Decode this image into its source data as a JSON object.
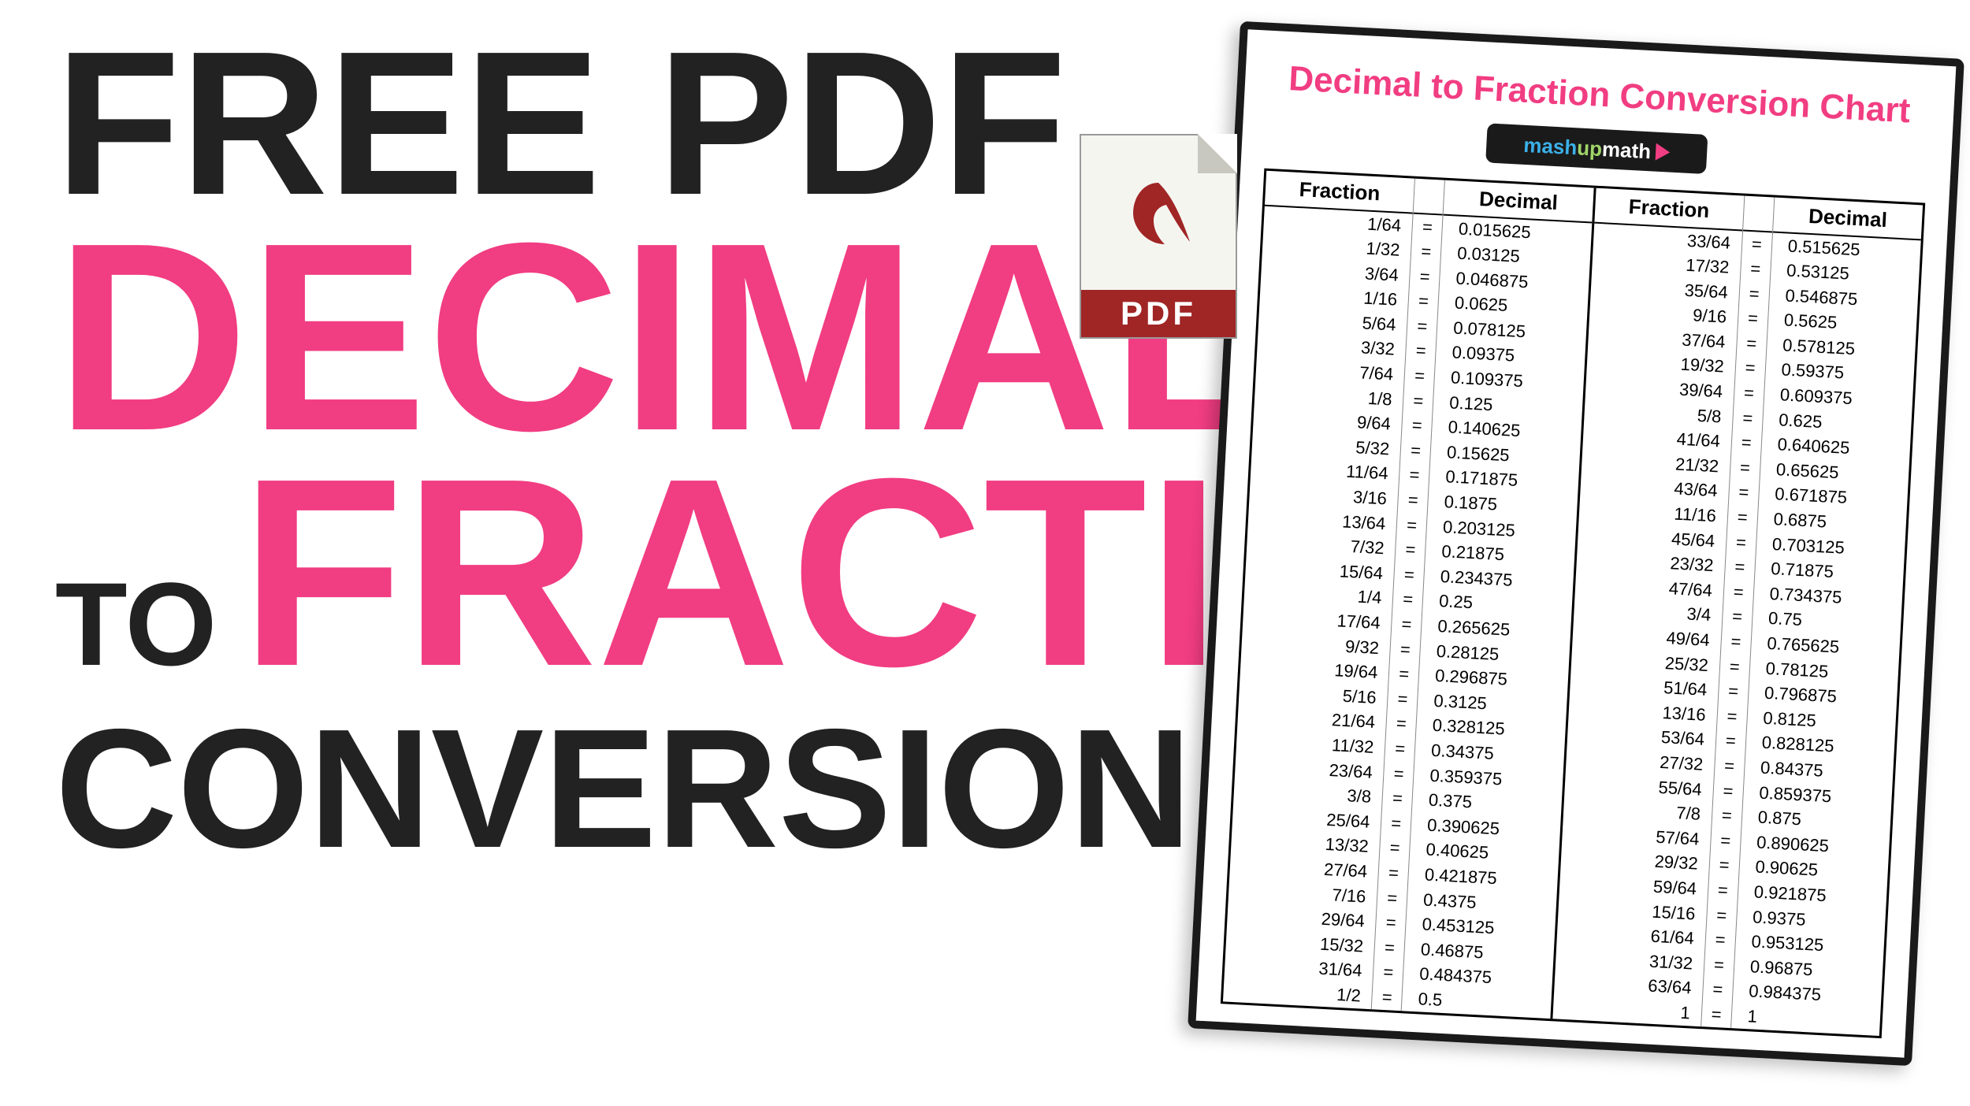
{
  "headline": {
    "line1": "FREE PDF",
    "line2": "DECIMAL",
    "line3_to": "TO",
    "line3_fraction": "FRACTION",
    "line4": "CONVERSION CHART!"
  },
  "colors": {
    "pink": "#f13d82",
    "black": "#222222",
    "pdf_red": "#a02525",
    "logo_bg": "#1a1a1a",
    "logo_blue": "#3bb0e8",
    "logo_green": "#a0d468",
    "background": "#ffffff"
  },
  "pdf_icon": {
    "label": "PDF"
  },
  "sheet": {
    "title": "Decimal to Fraction Conversion Chart",
    "logo": {
      "part1": "mash",
      "part2": "up",
      "part3": "math"
    },
    "headers": {
      "fraction": "Fraction",
      "decimal": "Decimal"
    },
    "table": {
      "type": "table",
      "columns": [
        "Fraction",
        "=",
        "Decimal",
        "Fraction",
        "=",
        "Decimal"
      ],
      "border_color": "#000000",
      "inner_border_color": "#888888",
      "header_fontsize": 26,
      "cell_fontsize": 22,
      "rows_left": [
        [
          "1/64",
          "0.015625"
        ],
        [
          "1/32",
          "0.03125"
        ],
        [
          "3/64",
          "0.046875"
        ],
        [
          "1/16",
          "0.0625"
        ],
        [
          "5/64",
          "0.078125"
        ],
        [
          "3/32",
          "0.09375"
        ],
        [
          "7/64",
          "0.109375"
        ],
        [
          "1/8",
          "0.125"
        ],
        [
          "9/64",
          "0.140625"
        ],
        [
          "5/32",
          "0.15625"
        ],
        [
          "11/64",
          "0.171875"
        ],
        [
          "3/16",
          "0.1875"
        ],
        [
          "13/64",
          "0.203125"
        ],
        [
          "7/32",
          "0.21875"
        ],
        [
          "15/64",
          "0.234375"
        ],
        [
          "1/4",
          "0.25"
        ],
        [
          "17/64",
          "0.265625"
        ],
        [
          "9/32",
          "0.28125"
        ],
        [
          "19/64",
          "0.296875"
        ],
        [
          "5/16",
          "0.3125"
        ],
        [
          "21/64",
          "0.328125"
        ],
        [
          "11/32",
          "0.34375"
        ],
        [
          "23/64",
          "0.359375"
        ],
        [
          "3/8",
          "0.375"
        ],
        [
          "25/64",
          "0.390625"
        ],
        [
          "13/32",
          "0.40625"
        ],
        [
          "27/64",
          "0.421875"
        ],
        [
          "7/16",
          "0.4375"
        ],
        [
          "29/64",
          "0.453125"
        ],
        [
          "15/32",
          "0.46875"
        ],
        [
          "31/64",
          "0.484375"
        ],
        [
          "1/2",
          "0.5"
        ]
      ],
      "rows_right": [
        [
          "33/64",
          "0.515625"
        ],
        [
          "17/32",
          "0.53125"
        ],
        [
          "35/64",
          "0.546875"
        ],
        [
          "9/16",
          "0.5625"
        ],
        [
          "37/64",
          "0.578125"
        ],
        [
          "19/32",
          "0.59375"
        ],
        [
          "39/64",
          "0.609375"
        ],
        [
          "5/8",
          "0.625"
        ],
        [
          "41/64",
          "0.640625"
        ],
        [
          "21/32",
          "0.65625"
        ],
        [
          "43/64",
          "0.671875"
        ],
        [
          "11/16",
          "0.6875"
        ],
        [
          "45/64",
          "0.703125"
        ],
        [
          "23/32",
          "0.71875"
        ],
        [
          "47/64",
          "0.734375"
        ],
        [
          "3/4",
          "0.75"
        ],
        [
          "49/64",
          "0.765625"
        ],
        [
          "25/32",
          "0.78125"
        ],
        [
          "51/64",
          "0.796875"
        ],
        [
          "13/16",
          "0.8125"
        ],
        [
          "53/64",
          "0.828125"
        ],
        [
          "27/32",
          "0.84375"
        ],
        [
          "55/64",
          "0.859375"
        ],
        [
          "7/8",
          "0.875"
        ],
        [
          "57/64",
          "0.890625"
        ],
        [
          "29/32",
          "0.90625"
        ],
        [
          "59/64",
          "0.921875"
        ],
        [
          "15/16",
          "0.9375"
        ],
        [
          "61/64",
          "0.953125"
        ],
        [
          "31/32",
          "0.96875"
        ],
        [
          "63/64",
          "0.984375"
        ],
        [
          "1",
          "1"
        ]
      ]
    }
  }
}
